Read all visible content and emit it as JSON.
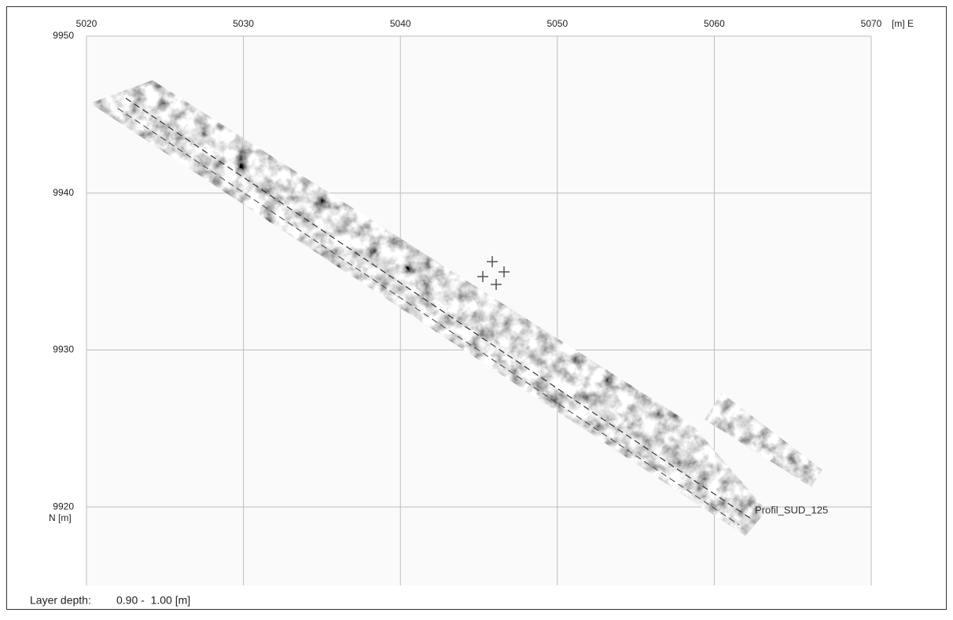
{
  "map": {
    "xlim": [
      5020,
      5070
    ],
    "ylim": [
      9915,
      9950
    ],
    "x_axis": {
      "unit_label": "[m] E",
      "ticks": [
        5020,
        5030,
        5040,
        5050,
        5060,
        5070
      ]
    },
    "y_axis": {
      "unit_label": "N [m]",
      "ticks": [
        9950,
        9940,
        9930,
        9920
      ]
    },
    "profile_label": "Profil_SUD_125",
    "footer": {
      "label": "Layer depth:",
      "value": "0.90 -  1.00 [m]"
    }
  }
}
